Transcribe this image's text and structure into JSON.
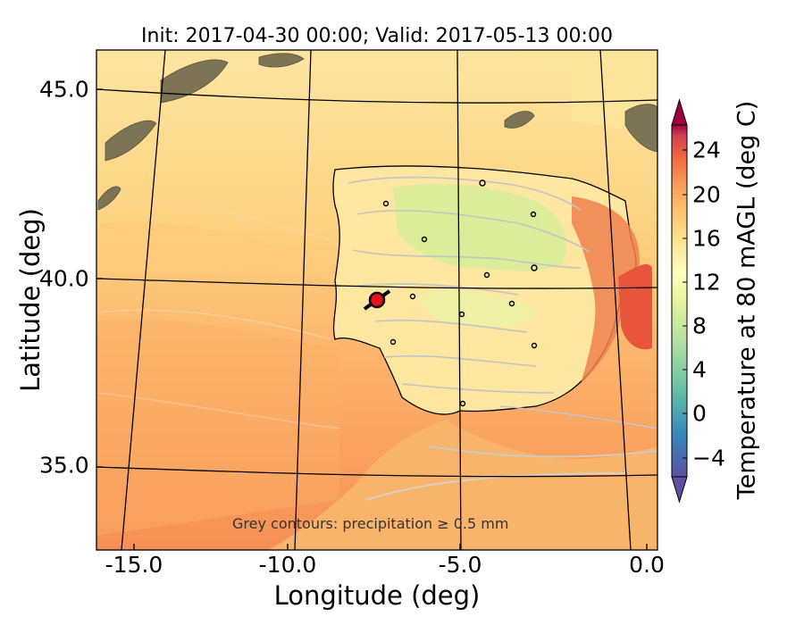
{
  "title": "Init: 2017-04-30 00:00; Valid: 2017-05-13 00:00",
  "xlabel": "Longitude (deg)",
  "ylabel": "Latitude (deg)",
  "colorbar_label": "Temperature at 80 mAGL (deg C)",
  "annotation": "Grey contours: precipitation ≥ 0.5 mm",
  "x_ticks": [
    "-15.0",
    "-10.0",
    "-5.0",
    "0.0"
  ],
  "y_ticks": [
    "45.0",
    "40.0",
    "35.0"
  ],
  "cb_ticks": [
    "24",
    "20",
    "16",
    "12",
    "8",
    "4",
    "0",
    "−4"
  ],
  "colors": {
    "sea_north": "#fde08c",
    "sea_mid": "#fdc175",
    "sea_south": "#f89a5a",
    "land": "#fde7a3",
    "land_green": "#d9ec98",
    "hot_east": "#e8553c",
    "marker": "#e8111b"
  },
  "chart_data": {
    "type": "map",
    "region": "Iberian Peninsula",
    "lon_range": [
      -16,
      0
    ],
    "lat_range": [
      33,
      46
    ],
    "graticule_lons": [
      -15,
      -10,
      -5,
      0
    ],
    "graticule_lats": [
      45,
      40,
      35
    ],
    "colorbar": {
      "min": -6,
      "max": 27,
      "step": 2,
      "extend": "both",
      "colormap": "Spectral_r"
    },
    "marker": {
      "lon": -7.6,
      "lat": 39.3
    },
    "marker_line": {
      "from": [
        -8.1,
        39.0
      ],
      "to": [
        -7.1,
        39.6
      ]
    }
  }
}
